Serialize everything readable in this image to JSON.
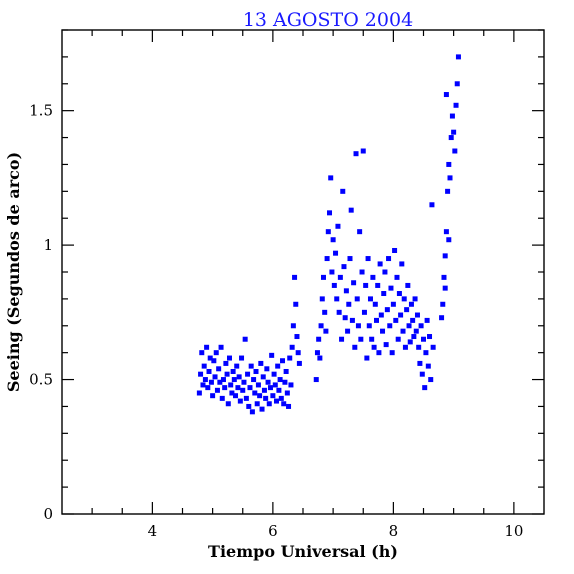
{
  "chart_data": {
    "type": "scatter",
    "title": "13 AGOSTO 2004",
    "xlabel": "Tiempo Universal (h)",
    "ylabel": "Seeing (Segundos de arco)",
    "xlim": [
      2.5,
      10.5
    ],
    "ylim": [
      0,
      1.8
    ],
    "xticks": [
      4,
      6,
      8,
      10
    ],
    "xtick_labels": [
      "4",
      "6",
      "8",
      "10"
    ],
    "yticks": [
      0,
      0.5,
      1,
      1.5
    ],
    "ytick_labels": [
      "0",
      "0.5",
      "1",
      "1.5"
    ],
    "grid": false,
    "marker_color": "#0000ff",
    "title_color": "#1a1aff",
    "series": [
      {
        "points": [
          [
            4.78,
            0.45
          ],
          [
            4.8,
            0.52
          ],
          [
            4.82,
            0.6
          ],
          [
            4.84,
            0.48
          ],
          [
            4.86,
            0.55
          ],
          [
            4.88,
            0.5
          ],
          [
            4.9,
            0.62
          ],
          [
            4.92,
            0.47
          ],
          [
            4.94,
            0.53
          ],
          [
            4.96,
            0.58
          ],
          [
            4.98,
            0.49
          ],
          [
            5.0,
            0.44
          ],
          [
            5.02,
            0.57
          ],
          [
            5.04,
            0.51
          ],
          [
            5.06,
            0.6
          ],
          [
            5.08,
            0.46
          ],
          [
            5.1,
            0.54
          ],
          [
            5.12,
            0.49
          ],
          [
            5.14,
            0.62
          ],
          [
            5.16,
            0.43
          ],
          [
            5.18,
            0.5
          ],
          [
            5.2,
            0.47
          ],
          [
            5.22,
            0.56
          ],
          [
            5.24,
            0.52
          ],
          [
            5.26,
            0.41
          ],
          [
            5.28,
            0.58
          ],
          [
            5.3,
            0.48
          ],
          [
            5.32,
            0.45
          ],
          [
            5.34,
            0.53
          ],
          [
            5.36,
            0.5
          ],
          [
            5.38,
            0.44
          ],
          [
            5.4,
            0.55
          ],
          [
            5.42,
            0.47
          ],
          [
            5.44,
            0.51
          ],
          [
            5.46,
            0.42
          ],
          [
            5.48,
            0.58
          ],
          [
            5.5,
            0.46
          ],
          [
            5.52,
            0.49
          ],
          [
            5.54,
            0.65
          ],
          [
            5.56,
            0.43
          ],
          [
            5.58,
            0.52
          ],
          [
            5.6,
            0.4
          ],
          [
            5.62,
            0.47
          ],
          [
            5.64,
            0.55
          ],
          [
            5.66,
            0.38
          ],
          [
            5.68,
            0.5
          ],
          [
            5.7,
            0.45
          ],
          [
            5.72,
            0.53
          ],
          [
            5.74,
            0.41
          ],
          [
            5.76,
            0.48
          ],
          [
            5.78,
            0.44
          ],
          [
            5.8,
            0.56
          ],
          [
            5.82,
            0.39
          ],
          [
            5.84,
            0.51
          ],
          [
            5.86,
            0.46
          ],
          [
            5.88,
            0.43
          ],
          [
            5.9,
            0.54
          ],
          [
            5.92,
            0.49
          ],
          [
            5.94,
            0.41
          ],
          [
            5.96,
            0.47
          ],
          [
            5.98,
            0.59
          ],
          [
            6.0,
            0.44
          ],
          [
            6.02,
            0.52
          ],
          [
            6.04,
            0.48
          ],
          [
            6.06,
            0.42
          ],
          [
            6.08,
            0.55
          ],
          [
            6.1,
            0.46
          ],
          [
            6.12,
            0.5
          ],
          [
            6.14,
            0.43
          ],
          [
            6.16,
            0.57
          ],
          [
            6.18,
            0.41
          ],
          [
            6.2,
            0.49
          ],
          [
            6.22,
            0.53
          ],
          [
            6.24,
            0.45
          ],
          [
            6.26,
            0.4
          ],
          [
            6.28,
            0.58
          ],
          [
            6.3,
            0.48
          ],
          [
            6.32,
            0.62
          ],
          [
            6.34,
            0.7
          ],
          [
            6.36,
            0.88
          ],
          [
            6.38,
            0.78
          ],
          [
            6.4,
            0.66
          ],
          [
            6.42,
            0.6
          ],
          [
            6.44,
            0.56
          ],
          [
            6.72,
            0.5
          ],
          [
            6.74,
            0.6
          ],
          [
            6.76,
            0.65
          ],
          [
            6.78,
            0.58
          ],
          [
            6.8,
            0.7
          ],
          [
            6.82,
            0.8
          ],
          [
            6.84,
            0.88
          ],
          [
            6.86,
            0.75
          ],
          [
            6.88,
            0.68
          ],
          [
            6.9,
            0.95
          ],
          [
            6.92,
            1.05
          ],
          [
            6.94,
            1.12
          ],
          [
            6.96,
            1.25
          ],
          [
            6.98,
            0.9
          ],
          [
            7.0,
            1.02
          ],
          [
            7.02,
            0.85
          ],
          [
            7.04,
            0.97
          ],
          [
            7.06,
            0.8
          ],
          [
            7.08,
            1.07
          ],
          [
            7.1,
            0.75
          ],
          [
            7.12,
            0.88
          ],
          [
            7.14,
            0.65
          ],
          [
            7.16,
            1.2
          ],
          [
            7.18,
            0.92
          ],
          [
            7.2,
            0.73
          ],
          [
            7.22,
            0.83
          ],
          [
            7.24,
            0.68
          ],
          [
            7.26,
            0.78
          ],
          [
            7.28,
            0.95
          ],
          [
            7.3,
            1.13
          ],
          [
            7.32,
            0.72
          ],
          [
            7.34,
            0.86
          ],
          [
            7.36,
            0.62
          ],
          [
            7.38,
            1.34
          ],
          [
            7.4,
            0.8
          ],
          [
            7.42,
            0.7
          ],
          [
            7.44,
            1.05
          ],
          [
            7.46,
            0.65
          ],
          [
            7.48,
            0.9
          ],
          [
            7.5,
            1.35
          ],
          [
            7.52,
            0.75
          ],
          [
            7.54,
            0.85
          ],
          [
            7.56,
            0.58
          ],
          [
            7.58,
            0.95
          ],
          [
            7.6,
            0.7
          ],
          [
            7.62,
            0.8
          ],
          [
            7.64,
            0.65
          ],
          [
            7.66,
            0.88
          ],
          [
            7.68,
            0.62
          ],
          [
            7.7,
            0.78
          ],
          [
            7.72,
            0.72
          ],
          [
            7.74,
            0.85
          ],
          [
            7.76,
            0.6
          ],
          [
            7.78,
            0.93
          ],
          [
            7.8,
            0.74
          ],
          [
            7.82,
            0.68
          ],
          [
            7.84,
            0.82
          ],
          [
            7.86,
            0.9
          ],
          [
            7.88,
            0.63
          ],
          [
            7.9,
            0.76
          ],
          [
            7.92,
            0.95
          ],
          [
            7.94,
            0.7
          ],
          [
            7.96,
            0.84
          ],
          [
            7.98,
            0.6
          ],
          [
            8.0,
            0.78
          ],
          [
            8.02,
            0.98
          ],
          [
            8.04,
            0.72
          ],
          [
            8.06,
            0.88
          ],
          [
            8.08,
            0.65
          ],
          [
            8.1,
            0.82
          ],
          [
            8.12,
            0.74
          ],
          [
            8.14,
            0.93
          ],
          [
            8.16,
            0.68
          ],
          [
            8.18,
            0.8
          ],
          [
            8.2,
            0.62
          ],
          [
            8.22,
            0.76
          ],
          [
            8.24,
            0.85
          ],
          [
            8.26,
            0.7
          ],
          [
            8.28,
            0.64
          ],
          [
            8.3,
            0.78
          ],
          [
            8.32,
            0.72
          ],
          [
            8.34,
            0.66
          ],
          [
            8.36,
            0.8
          ],
          [
            8.38,
            0.68
          ],
          [
            8.4,
            0.74
          ],
          [
            8.42,
            0.62
          ],
          [
            8.44,
            0.56
          ],
          [
            8.46,
            0.7
          ],
          [
            8.48,
            0.52
          ],
          [
            8.5,
            0.65
          ],
          [
            8.52,
            0.47
          ],
          [
            8.54,
            0.6
          ],
          [
            8.56,
            0.72
          ],
          [
            8.58,
            0.55
          ],
          [
            8.6,
            0.66
          ],
          [
            8.62,
            0.5
          ],
          [
            8.64,
            1.15
          ],
          [
            8.66,
            0.62
          ],
          [
            8.8,
            0.73
          ],
          [
            8.82,
            0.78
          ],
          [
            8.84,
            0.88
          ],
          [
            8.86,
            0.96
          ],
          [
            8.88,
            1.05
          ],
          [
            8.9,
            1.2
          ],
          [
            8.92,
            1.3
          ],
          [
            8.94,
            1.25
          ],
          [
            8.96,
            1.4
          ],
          [
            8.98,
            1.48
          ],
          [
            9.0,
            1.42
          ],
          [
            9.02,
            1.35
          ],
          [
            9.04,
            1.52
          ],
          [
            9.06,
            1.6
          ],
          [
            9.08,
            1.7
          ],
          [
            8.88,
            1.56
          ],
          [
            8.92,
            1.02
          ],
          [
            8.86,
            0.84
          ]
        ]
      }
    ]
  }
}
